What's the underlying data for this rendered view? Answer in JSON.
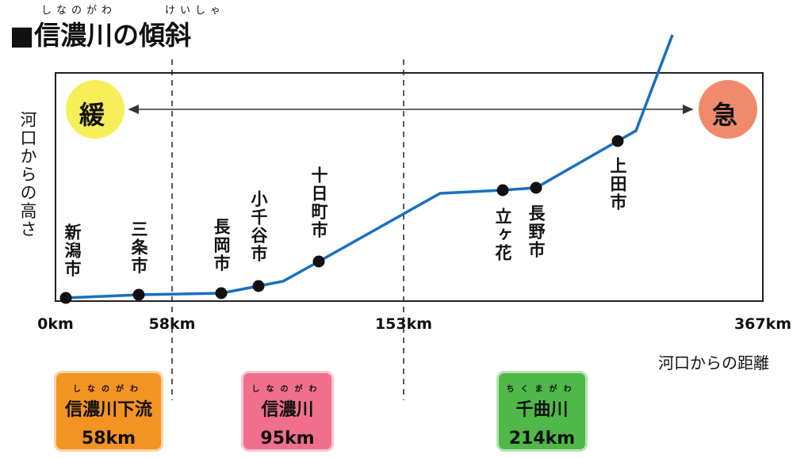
{
  "header": {
    "title": "■信濃川の傾斜",
    "ruby": [
      "しなのがわ",
      "けいしゃ"
    ]
  },
  "gradient": {
    "gentle": "緩",
    "steep": "急"
  },
  "axis": {
    "y_label": "河口からの高さ",
    "x_label": "河口からの距離",
    "x_ticks": [
      "0km",
      "58km",
      "153km",
      "367km"
    ]
  },
  "cities": [
    "新潟市",
    "三条市",
    "長岡市",
    "小千谷市",
    "十日町市",
    "立ヶ花",
    "長野市",
    "上田市"
  ],
  "sections": [
    {
      "ruby": "しなのがわ",
      "name": "信濃川下流",
      "length": "58km"
    },
    {
      "ruby": "しなのがわ",
      "name": "信濃川",
      "length": "95km"
    },
    {
      "ruby": "ちくまがわ",
      "name": "千曲川",
      "length": "214km"
    }
  ]
}
